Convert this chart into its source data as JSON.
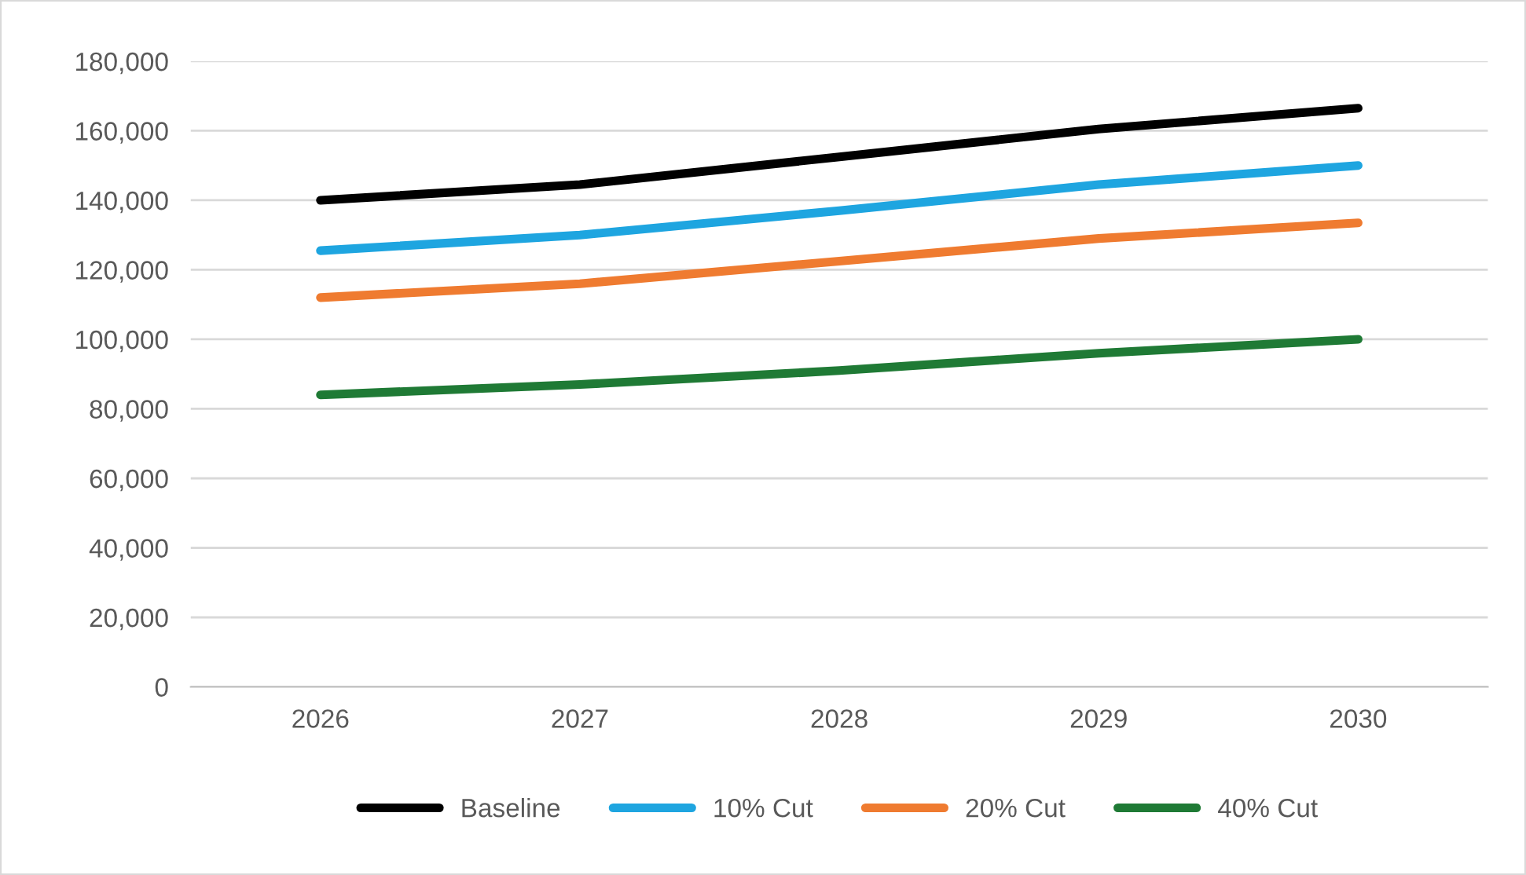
{
  "chart_data": {
    "type": "line",
    "categories": [
      "2026",
      "2027",
      "2028",
      "2029",
      "2030"
    ],
    "series": [
      {
        "name": "Baseline",
        "color": "#000000",
        "values": [
          140000,
          144500,
          152500,
          160500,
          166500
        ]
      },
      {
        "name": "10% Cut",
        "color": "#1ea5e0",
        "values": [
          125500,
          130000,
          137000,
          144500,
          150000
        ]
      },
      {
        "name": "20% Cut",
        "color": "#ef7b30",
        "values": [
          112000,
          116000,
          122500,
          129000,
          133500
        ]
      },
      {
        "name": "40% Cut",
        "color": "#1f7a35",
        "values": [
          84000,
          87000,
          91000,
          96000,
          100000
        ]
      }
    ],
    "ylim": [
      0,
      180000
    ],
    "yticks": [
      {
        "value": 0,
        "label": "0"
      },
      {
        "value": 20000,
        "label": "20,000"
      },
      {
        "value": 40000,
        "label": "40,000"
      },
      {
        "value": 60000,
        "label": "60,000"
      },
      {
        "value": 80000,
        "label": "80,000"
      },
      {
        "value": 100000,
        "label": "100,000"
      },
      {
        "value": 120000,
        "label": "120,000"
      },
      {
        "value": 140000,
        "label": "140,000"
      },
      {
        "value": 160000,
        "label": "160,000"
      },
      {
        "value": 180000,
        "label": "180,000"
      }
    ],
    "grid": "y",
    "legend": "bottom",
    "marker": "none",
    "line_style": "solid"
  }
}
